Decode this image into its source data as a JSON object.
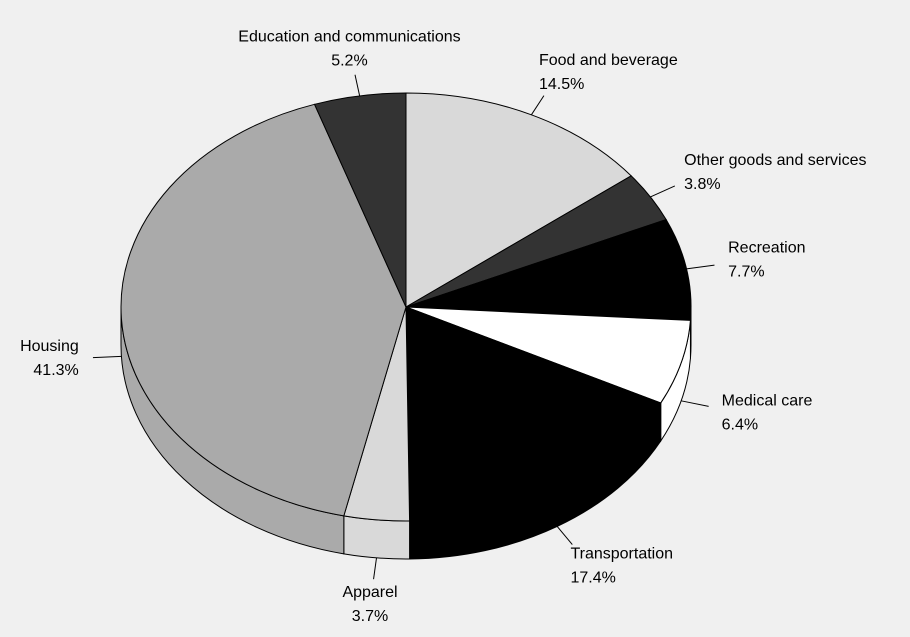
{
  "chart_data": {
    "type": "pie3d",
    "categories": [
      "Food and beverage",
      "Other goods and services",
      "Recreation",
      "Medical care",
      "Transportation",
      "Apparel",
      "Housing",
      "Education and communications"
    ],
    "values": [
      14.5,
      3.8,
      7.7,
      6.4,
      17.4,
      3.7,
      41.3,
      5.2
    ],
    "value_labels": [
      "14.5%",
      "3.8%",
      "7.7%",
      "6.4%",
      "17.4%",
      "3.7%",
      "41.3%",
      "5.2%"
    ],
    "colors": [
      "#d9d9d9",
      "#333333",
      "#000000",
      "#ffffff",
      "#000000",
      "#d9d9d9",
      "#aaaaaa",
      "#333333"
    ]
  }
}
